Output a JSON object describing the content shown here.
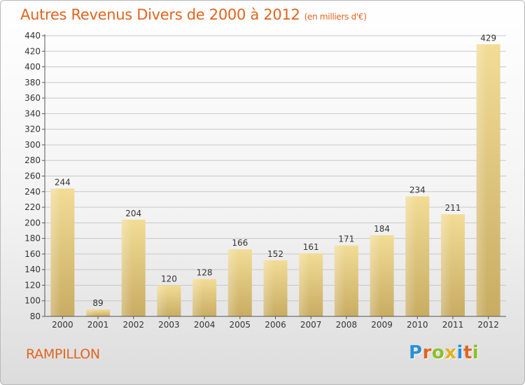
{
  "header": {
    "title": "Autres Revenus Divers de 2000 à 2012",
    "unit": "(en milliers d'€)"
  },
  "footer": {
    "place": "RAMPILLON"
  },
  "logo": {
    "letters": [
      "P",
      "r",
      "o",
      "x",
      "i",
      "t",
      "i"
    ],
    "colors": [
      "#2d8fd6",
      "#e3641e",
      "#8cbf2a",
      "#e4b11a",
      "#2d8fd6",
      "#e3641e",
      "#8cbf2a"
    ]
  },
  "chart_data": {
    "type": "bar",
    "title": "Autres Revenus Divers de 2000 à 2012",
    "subtitle": "(en milliers d'€)",
    "categories": [
      "2000",
      "2001",
      "2002",
      "2003",
      "2004",
      "2005",
      "2006",
      "2007",
      "2008",
      "2009",
      "2010",
      "2011",
      "2012"
    ],
    "values": [
      244,
      89,
      204,
      120,
      128,
      166,
      152,
      161,
      171,
      184,
      234,
      211,
      429
    ],
    "ylim": [
      80,
      440
    ],
    "yticks": [
      80,
      100,
      120,
      140,
      160,
      180,
      200,
      220,
      240,
      260,
      280,
      300,
      320,
      340,
      360,
      380,
      400,
      420,
      440
    ],
    "grid": true,
    "colors": {
      "bar_top": "#f2dc96",
      "bar_bottom": "#c8ac62",
      "grid": "#c8c8c8",
      "axis": "#555555"
    }
  }
}
